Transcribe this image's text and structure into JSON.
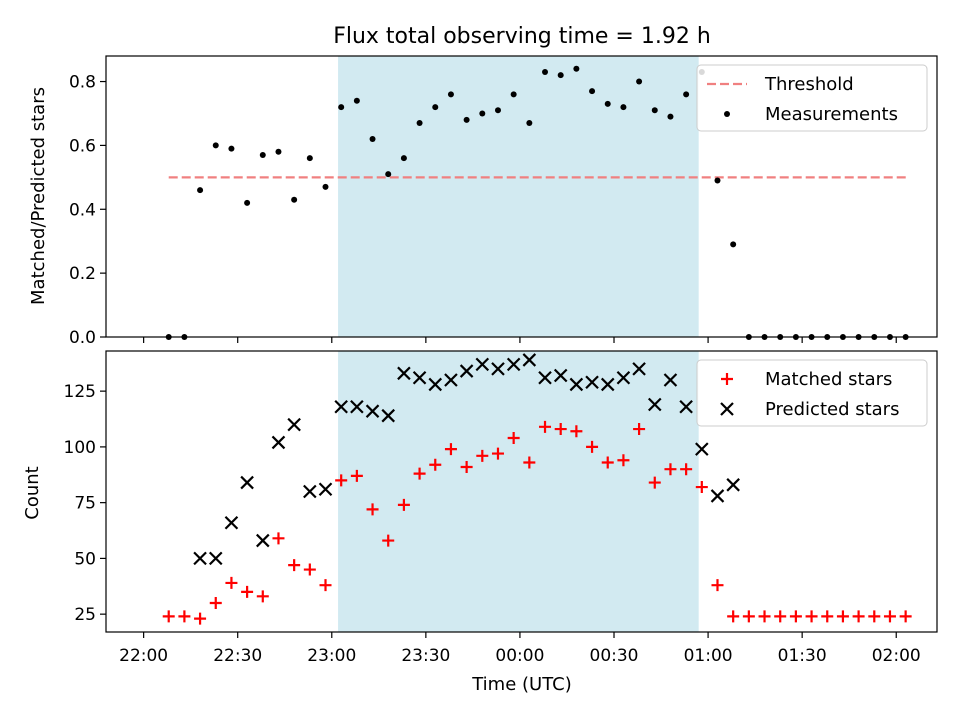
{
  "figure": {
    "title": "Flux total observing time = 1.92 h",
    "xlabel": "Time (UTC)",
    "x_ticks": [
      "22:00",
      "22:30",
      "23:00",
      "23:30",
      "00:00",
      "00:30",
      "01:00",
      "01:30",
      "02:00"
    ],
    "shaded_color": "#add8e6"
  },
  "chart_data": [
    {
      "type": "scatter",
      "panel": "top",
      "ylabel": "Matched/Predicted stars",
      "ylim": [
        0,
        0.88
      ],
      "y_ticks": [
        "0.0",
        "0.2",
        "0.4",
        "0.6",
        "0.8"
      ],
      "x_unit": "minutes after 22:00 UTC",
      "shaded_interval": [
        "23:02",
        "00:57"
      ],
      "legend": {
        "placement": "top-right",
        "entries": [
          "Threshold",
          "Measurements"
        ]
      },
      "series": [
        {
          "name": "Threshold",
          "kind": "dashed-line",
          "color": "#f08080",
          "x": [
            8,
            244
          ],
          "y": [
            0.5,
            0.5
          ]
        },
        {
          "name": "Measurements",
          "kind": "dots",
          "color": "#000000",
          "x": [
            8,
            13,
            18,
            23,
            28,
            33,
            38,
            43,
            48,
            53,
            58,
            63,
            68,
            73,
            78,
            83,
            88,
            93,
            98,
            103,
            108,
            113,
            118,
            123,
            128,
            133,
            138,
            143,
            148,
            153,
            158,
            163,
            168,
            173,
            178,
            183,
            188,
            193,
            198,
            203,
            208,
            213,
            218,
            223,
            228,
            233,
            238,
            243
          ],
          "y": [
            0.0,
            0.0,
            0.46,
            0.6,
            0.59,
            0.42,
            0.57,
            0.58,
            0.43,
            0.56,
            0.47,
            0.72,
            0.74,
            0.62,
            0.51,
            0.56,
            0.67,
            0.72,
            0.76,
            0.68,
            0.7,
            0.71,
            0.76,
            0.67,
            0.83,
            0.82,
            0.84,
            0.77,
            0.73,
            0.72,
            0.8,
            0.71,
            0.69,
            0.76,
            0.83,
            0.49,
            0.29,
            0.0,
            0.0,
            0.0,
            0.0,
            0.0,
            0.0,
            0.0,
            0.0,
            0.0,
            0.0,
            0.0
          ]
        }
      ]
    },
    {
      "type": "scatter",
      "panel": "bottom",
      "ylabel": "Count",
      "ylim": [
        17,
        143
      ],
      "y_ticks": [
        "25",
        "50",
        "75",
        "100",
        "125"
      ],
      "x_unit": "minutes after 22:00 UTC",
      "shaded_interval": [
        "23:02",
        "00:57"
      ],
      "legend": {
        "placement": "top-right",
        "entries": [
          "Matched stars",
          "Predicted stars"
        ]
      },
      "series": [
        {
          "name": "Matched stars",
          "marker": "plus",
          "color": "#ff0000",
          "x": [
            8,
            13,
            18,
            23,
            28,
            33,
            38,
            43,
            48,
            53,
            58,
            63,
            68,
            73,
            78,
            83,
            88,
            93,
            98,
            103,
            108,
            113,
            118,
            123,
            128,
            133,
            138,
            143,
            148,
            153,
            158,
            163,
            168,
            173,
            178,
            183,
            188,
            193,
            198,
            203,
            208,
            213,
            218,
            223,
            228,
            233,
            238,
            243
          ],
          "y": [
            24,
            24,
            23,
            30,
            39,
            35,
            33,
            59,
            47,
            45,
            38,
            85,
            87,
            72,
            58,
            74,
            88,
            92,
            99,
            91,
            96,
            97,
            104,
            93,
            109,
            108,
            107,
            100,
            93,
            94,
            108,
            84,
            90,
            90,
            82,
            38,
            24,
            24,
            24,
            24,
            24,
            24,
            24,
            24,
            24,
            24,
            24,
            24
          ]
        },
        {
          "name": "Predicted stars",
          "marker": "x",
          "color": "#000000",
          "x": [
            18,
            23,
            28,
            33,
            38,
            43,
            48,
            53,
            58,
            63,
            68,
            73,
            78,
            83,
            88,
            93,
            98,
            103,
            108,
            113,
            118,
            123,
            128,
            133,
            138,
            143,
            148,
            153,
            158,
            163,
            168,
            173,
            178,
            183,
            188
          ],
          "y": [
            50,
            50,
            66,
            84,
            58,
            102,
            110,
            80,
            81,
            118,
            118,
            116,
            114,
            133,
            131,
            128,
            130,
            134,
            137,
            135,
            137,
            139,
            131,
            132,
            128,
            129,
            128,
            131,
            135,
            119,
            130,
            118,
            99,
            78,
            83
          ]
        }
      ]
    }
  ]
}
